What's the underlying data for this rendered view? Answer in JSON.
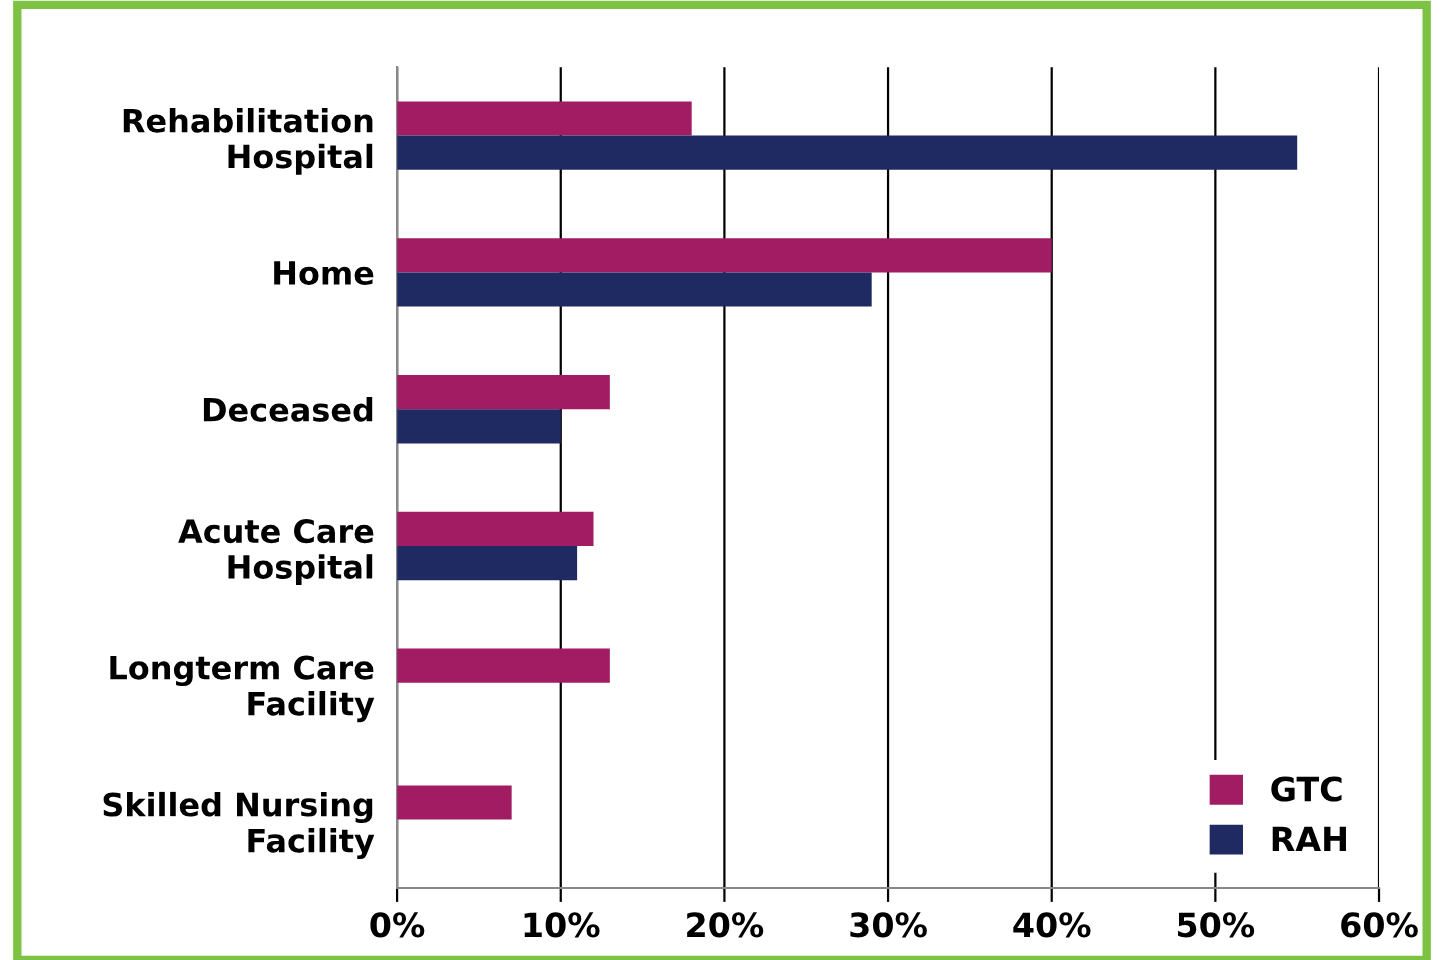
{
  "chart_data": {
    "type": "bar",
    "orientation": "horizontal",
    "categories": [
      "Rehabilitation\nHospital",
      "Home",
      "Deceased",
      "Acute Care\nHospital",
      "Longterm Care\nFacility",
      "Skilled Nursing\nFacility"
    ],
    "series": [
      {
        "name": "GTC",
        "color": "#a11c63",
        "values": [
          18,
          40,
          13,
          12,
          13,
          7
        ]
      },
      {
        "name": "RAH",
        "color": "#1f2a63",
        "values": [
          55,
          29,
          10,
          11,
          null,
          null
        ]
      }
    ],
    "xlim": [
      0,
      60
    ],
    "xticks": [
      {
        "value": 0,
        "label": "0%"
      },
      {
        "value": 10,
        "label": "10%"
      },
      {
        "value": 20,
        "label": "20%"
      },
      {
        "value": 30,
        "label": "30%"
      },
      {
        "value": 40,
        "label": "40%"
      },
      {
        "value": 50,
        "label": "50%"
      },
      {
        "value": 60,
        "label": "60%"
      }
    ],
    "grid": "x",
    "legend": "bottom right"
  }
}
